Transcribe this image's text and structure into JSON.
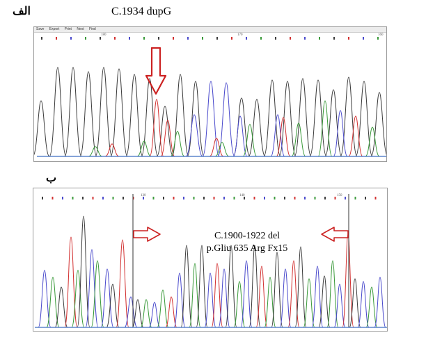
{
  "panel_a": {
    "label": "الف",
    "title": "C.1934 dupG",
    "toolbar": [
      "Save",
      "Export",
      "Print",
      "Next",
      "Find"
    ],
    "ruler": [
      "180",
      "170",
      "160"
    ]
  },
  "panel_b": {
    "label": "ب",
    "annotation_line1": "C.1900-1922 del",
    "annotation_line2": "p.Gliu 635 Arg Fx15",
    "ruler": [
      "130",
      "140",
      "150"
    ]
  },
  "colors": {
    "A": "#3a9a3a",
    "C": "#4a4acc",
    "G": "#3c3c3c",
    "T": "#d23030",
    "arrow": "#cc2222"
  }
}
